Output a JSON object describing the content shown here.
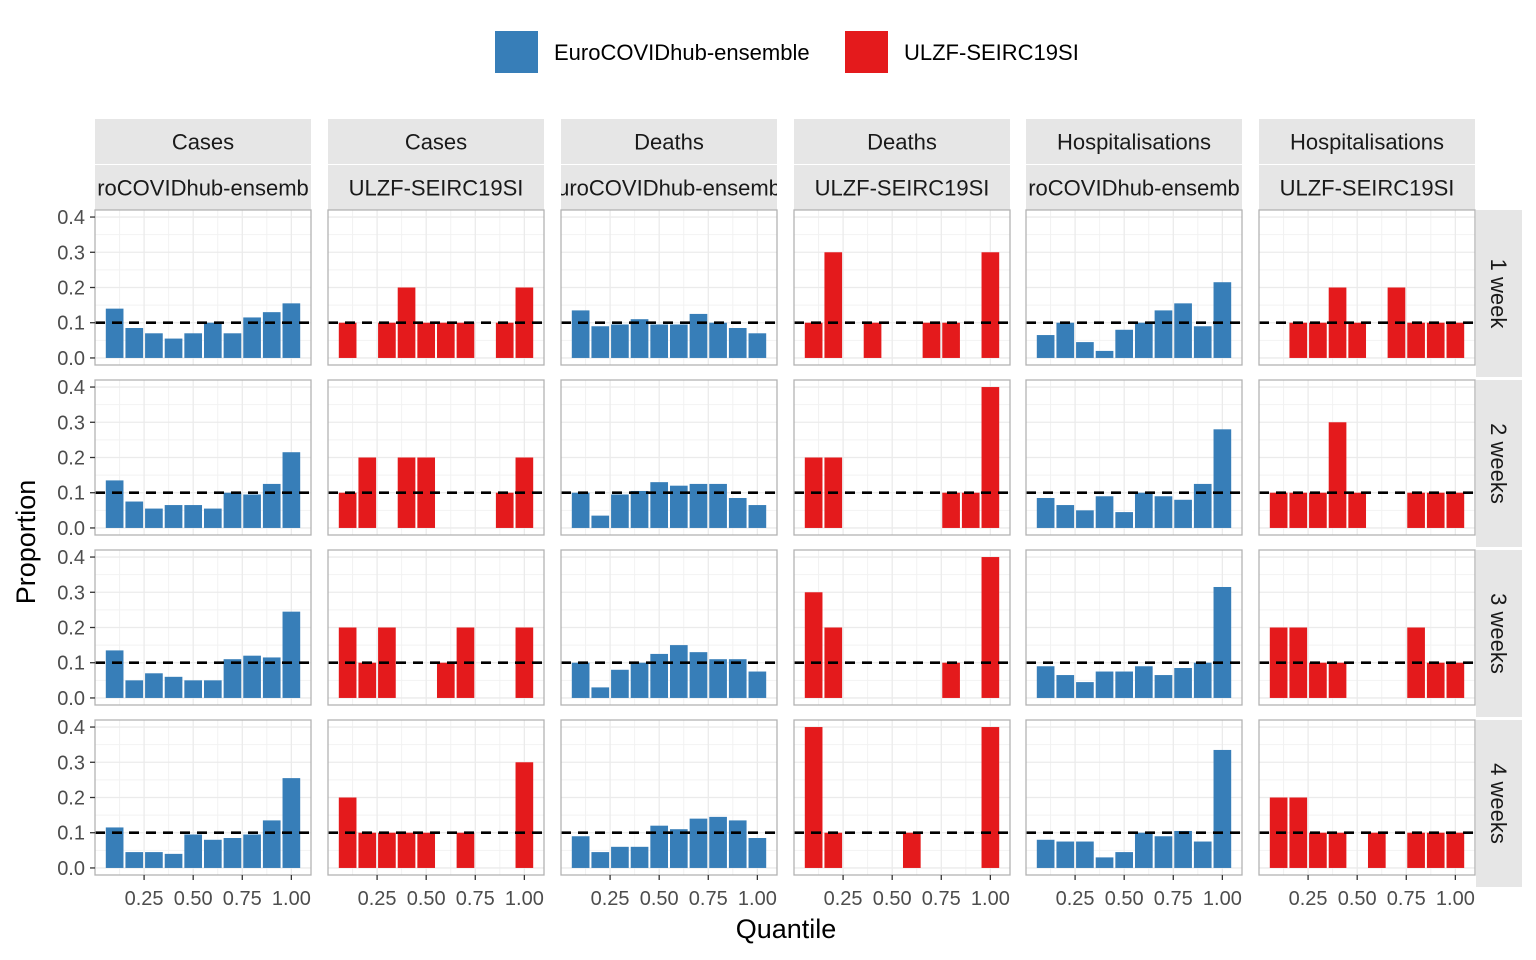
{
  "chart_data": {
    "type": "bar",
    "xlabel": "Quantile",
    "ylabel": "Proportion",
    "x_ticks": [
      "0.25",
      "0.50",
      "0.75",
      "1.00"
    ],
    "x_tick_values": [
      0.25,
      0.5,
      0.75,
      1.0
    ],
    "y_ticks": [
      "0.0",
      "0.1",
      "0.2",
      "0.3",
      "0.4"
    ],
    "y_tick_values": [
      0,
      0.1,
      0.2,
      0.3,
      0.4
    ],
    "xlim": [
      0.0,
      1.1
    ],
    "ylim": [
      -0.02,
      0.42
    ],
    "x": [
      0.1,
      0.2,
      0.3,
      0.4,
      0.5,
      0.6,
      0.7,
      0.8,
      0.9,
      1.0
    ],
    "reference_line": 0.1,
    "grid": true,
    "legend_position": "top",
    "legend": [
      {
        "name": "EuroCOVIDhub-ensemble",
        "color": "#377EB8"
      },
      {
        "name": "ULZF-SEIRC19SI",
        "color": "#E41A1C"
      }
    ],
    "columns": [
      {
        "target": "Cases",
        "model": "EuroCOVIDhub-ensemble",
        "model_label": "roCOVIDhub-ensemb",
        "color": "#377EB8"
      },
      {
        "target": "Cases",
        "model": "ULZF-SEIRC19SI",
        "model_label": "ULZF-SEIRC19SI",
        "color": "#E41A1C"
      },
      {
        "target": "Deaths",
        "model": "EuroCOVIDhub-ensemble",
        "model_label": "uroCOVIDhub-ensemb",
        "color": "#377EB8"
      },
      {
        "target": "Deaths",
        "model": "ULZF-SEIRC19SI",
        "model_label": "ULZF-SEIRC19SI",
        "color": "#E41A1C"
      },
      {
        "target": "Hospitalisations",
        "model": "EuroCOVIDhub-ensemble",
        "model_label": "roCOVIDhub-ensemb",
        "color": "#377EB8"
      },
      {
        "target": "Hospitalisations",
        "model": "ULZF-SEIRC19SI",
        "model_label": "ULZF-SEIRC19SI",
        "color": "#E41A1C"
      }
    ],
    "rows": [
      "1 week",
      "2 weeks",
      "3 weeks",
      "4 weeks"
    ],
    "panels": [
      [
        [
          0.14,
          0.085,
          0.07,
          0.055,
          0.07,
          0.1,
          0.07,
          0.115,
          0.13,
          0.155
        ],
        [
          0.1,
          0,
          0.1,
          0.2,
          0.1,
          0.1,
          0.1,
          0,
          0.1,
          0.2
        ],
        [
          0.135,
          0.09,
          0.095,
          0.11,
          0.095,
          0.095,
          0.125,
          0.1,
          0.085,
          0.07
        ],
        [
          0.1,
          0.3,
          0,
          0.1,
          0,
          0,
          0.1,
          0.1,
          0,
          0.3
        ],
        [
          0.065,
          0.1,
          0.045,
          0.02,
          0.08,
          0.1,
          0.135,
          0.155,
          0.09,
          0.215
        ],
        [
          0,
          0.1,
          0.1,
          0.2,
          0.1,
          0,
          0.2,
          0.1,
          0.1,
          0.1
        ]
      ],
      [
        [
          0.135,
          0.075,
          0.055,
          0.065,
          0.065,
          0.055,
          0.1,
          0.095,
          0.125,
          0.215
        ],
        [
          0.1,
          0.2,
          0,
          0.2,
          0.2,
          0,
          0,
          0,
          0.1,
          0.2
        ],
        [
          0.1,
          0.035,
          0.095,
          0.105,
          0.13,
          0.12,
          0.125,
          0.125,
          0.085,
          0.065
        ],
        [
          0.2,
          0.2,
          0,
          0,
          0,
          0,
          0,
          0.1,
          0.1,
          0.4
        ],
        [
          0.085,
          0.065,
          0.05,
          0.09,
          0.045,
          0.1,
          0.09,
          0.08,
          0.125,
          0.28
        ],
        [
          0.1,
          0.1,
          0.1,
          0.3,
          0.1,
          0,
          0,
          0.1,
          0.1,
          0.1
        ]
      ],
      [
        [
          0.135,
          0.05,
          0.07,
          0.06,
          0.05,
          0.05,
          0.11,
          0.12,
          0.115,
          0.245
        ],
        [
          0.2,
          0.1,
          0.2,
          0,
          0,
          0.1,
          0.2,
          0,
          0,
          0.2
        ],
        [
          0.1,
          0.03,
          0.08,
          0.1,
          0.125,
          0.15,
          0.13,
          0.11,
          0.11,
          0.075
        ],
        [
          0.3,
          0.2,
          0,
          0,
          0,
          0,
          0,
          0.1,
          0,
          0.4
        ],
        [
          0.09,
          0.065,
          0.045,
          0.075,
          0.075,
          0.09,
          0.065,
          0.085,
          0.1,
          0.315
        ],
        [
          0.2,
          0.2,
          0.1,
          0.1,
          0,
          0,
          0,
          0.2,
          0.1,
          0.1
        ]
      ],
      [
        [
          0.115,
          0.045,
          0.045,
          0.04,
          0.095,
          0.08,
          0.085,
          0.095,
          0.135,
          0.255
        ],
        [
          0.2,
          0.1,
          0.1,
          0.1,
          0.1,
          0,
          0.1,
          0,
          0,
          0.3
        ],
        [
          0.09,
          0.045,
          0.06,
          0.06,
          0.12,
          0.11,
          0.14,
          0.145,
          0.135,
          0.085
        ],
        [
          0.4,
          0.1,
          0,
          0,
          0,
          0.1,
          0,
          0,
          0,
          0.4
        ],
        [
          0.08,
          0.075,
          0.075,
          0.03,
          0.045,
          0.1,
          0.09,
          0.105,
          0.075,
          0.335
        ],
        [
          0.2,
          0.2,
          0.1,
          0.1,
          0,
          0.1,
          0,
          0.1,
          0.1,
          0.1
        ]
      ]
    ]
  }
}
